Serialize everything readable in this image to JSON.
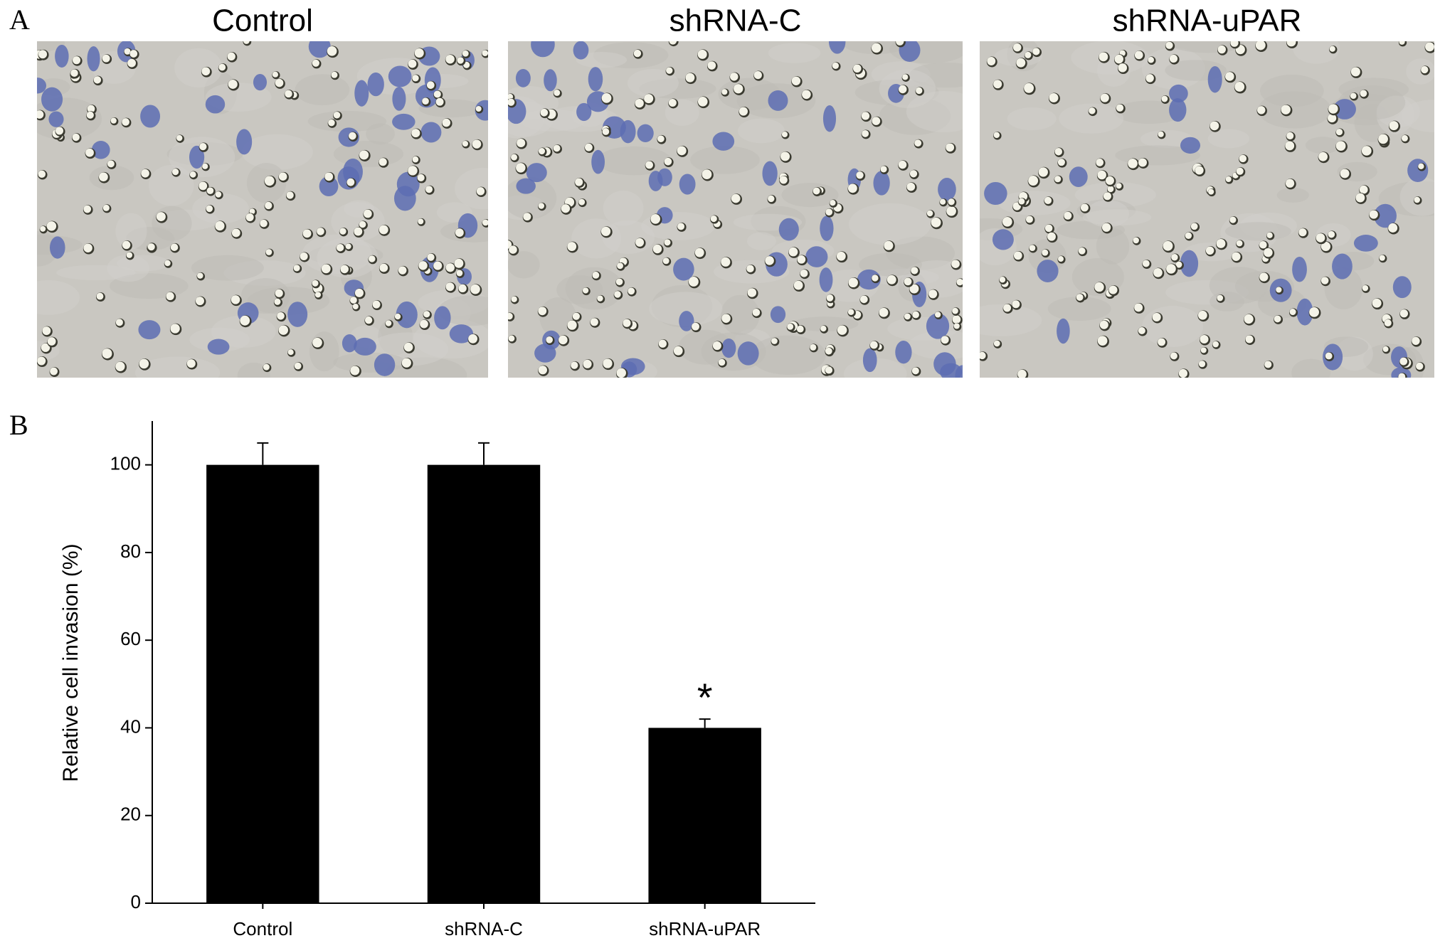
{
  "panel_a": {
    "label": "A",
    "images": [
      {
        "title": "Control"
      },
      {
        "title": "shRNA-C"
      },
      {
        "title": "shRNA-uPAR"
      }
    ]
  },
  "chart_data": {
    "type": "bar",
    "panel_label": "B",
    "categories": [
      "Control",
      "shRNA-C",
      "shRNA-uPAR"
    ],
    "values": [
      100,
      100,
      40
    ],
    "errors": [
      5,
      5,
      2
    ],
    "color": "#000000",
    "ylabel": "Relative cell invasion (%)",
    "ylim": [
      0,
      110
    ],
    "yticks": [
      0,
      20,
      40,
      60,
      80,
      100
    ],
    "annotations": [
      {
        "category": 2,
        "text": "*"
      }
    ]
  }
}
